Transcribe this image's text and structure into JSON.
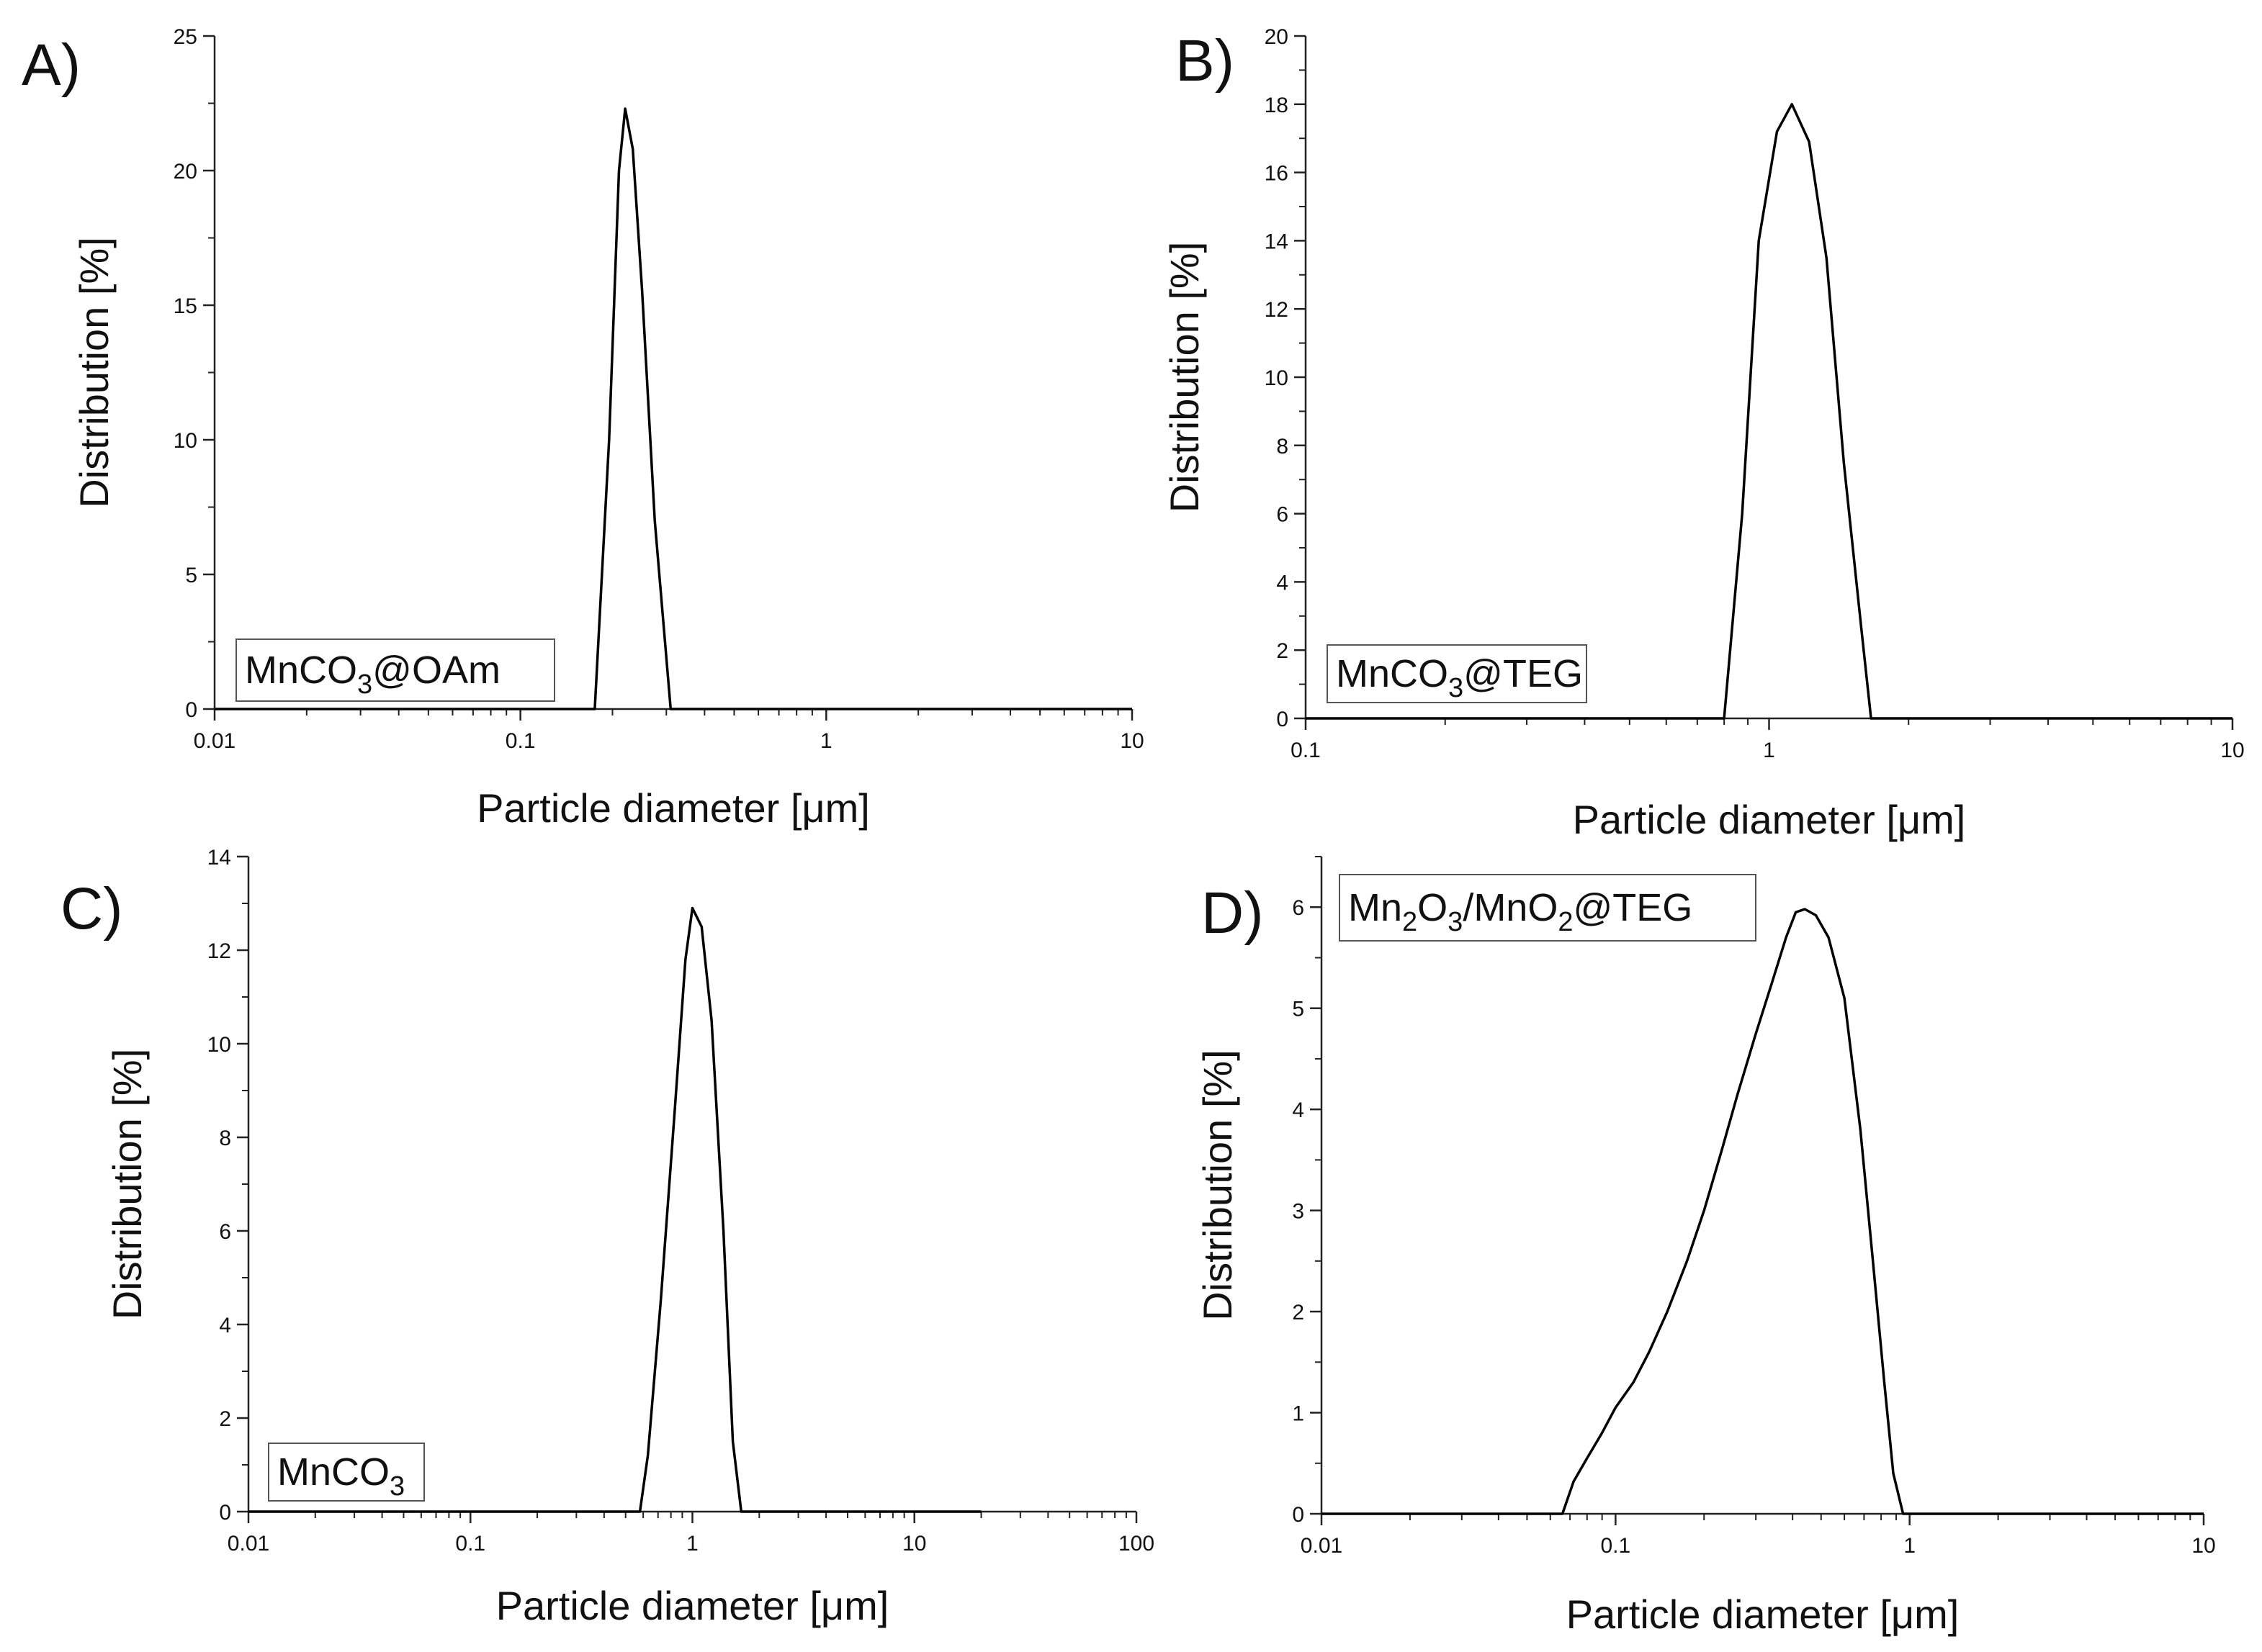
{
  "chart_data": [
    {
      "type": "line",
      "panel_letter": "A)",
      "x_scale": "log",
      "xlim": [
        0.01,
        10
      ],
      "ylim": [
        0,
        25
      ],
      "xticks": [
        0.01,
        0.1,
        1,
        10
      ],
      "xtick_labels": [
        "0.01",
        "0.1",
        "1",
        "10"
      ],
      "yticks": [
        0,
        5,
        10,
        15,
        20,
        25
      ],
      "ytick_labels": [
        "0",
        "5",
        "10",
        "15",
        "20",
        "25"
      ],
      "xlabel": "Particle diameter [μm]",
      "ylabel": "Distribution [%]",
      "legend_location": "bottom-left",
      "grid": false,
      "series": [
        {
          "name": "MnCO3@OAm",
          "name_parts": [
            {
              "t": "MnCO"
            },
            {
              "t": "3",
              "sub": true
            },
            {
              "t": "@OAm"
            }
          ],
          "color": "#000000",
          "x": [
            0.01,
            0.175,
            0.195,
            0.21,
            0.22,
            0.233,
            0.25,
            0.275,
            0.31,
            10
          ],
          "y": [
            0,
            0,
            10,
            20,
            22.3,
            20.8,
            15.5,
            7,
            0,
            0
          ]
        }
      ]
    },
    {
      "type": "line",
      "panel_letter": "B)",
      "x_scale": "log",
      "xlim": [
        0.1,
        10
      ],
      "ylim": [
        0,
        20
      ],
      "xticks": [
        0.1,
        1,
        10
      ],
      "xtick_labels": [
        "0.1",
        "1",
        "10"
      ],
      "yticks": [
        0,
        2,
        4,
        6,
        8,
        10,
        12,
        14,
        16,
        18,
        20
      ],
      "ytick_labels": [
        "0",
        "2",
        "4",
        "6",
        "8",
        "10",
        "12",
        "14",
        "16",
        "18",
        "20"
      ],
      "xlabel": "Particle diameter [μm]",
      "ylabel": "Distribution [%]",
      "legend_location": "bottom-left",
      "grid": false,
      "series": [
        {
          "name": "MnCO3@TEG",
          "name_parts": [
            {
              "t": "MnCO"
            },
            {
              "t": "3",
              "sub": true
            },
            {
              "t": "@TEG"
            }
          ],
          "color": "#000000",
          "x": [
            0.1,
            0.8,
            0.875,
            0.95,
            1.04,
            1.12,
            1.22,
            1.33,
            1.45,
            1.58,
            1.66,
            10
          ],
          "y": [
            0,
            0,
            6,
            14,
            17.2,
            18,
            16.9,
            13.5,
            7.5,
            2.7,
            0,
            0
          ]
        }
      ]
    },
    {
      "type": "line",
      "panel_letter": "C)",
      "x_scale": "log",
      "xlim": [
        0.01,
        100
      ],
      "ylim": [
        0,
        14
      ],
      "xticks": [
        0.01,
        0.1,
        1,
        10,
        100
      ],
      "xtick_labels": [
        "0.01",
        "0.1",
        "1",
        "10",
        "100"
      ],
      "yticks": [
        0,
        2,
        4,
        6,
        8,
        10,
        12,
        14
      ],
      "ytick_labels": [
        "0",
        "2",
        "4",
        "6",
        "8",
        "10",
        "12",
        "14"
      ],
      "xlabel": "Particle diameter [μm]",
      "ylabel": "Distribution [%]",
      "legend_location": "bottom-left",
      "grid": false,
      "series": [
        {
          "name": "MnCO3",
          "name_parts": [
            {
              "t": "MnCO"
            },
            {
              "t": "3",
              "sub": true
            }
          ],
          "color": "#000000",
          "x": [
            0.01,
            0.58,
            0.63,
            0.72,
            0.83,
            0.93,
            1.0,
            1.1,
            1.22,
            1.38,
            1.52,
            1.66,
            20
          ],
          "y": [
            0,
            0,
            1.2,
            4.5,
            8.5,
            11.8,
            12.9,
            12.5,
            10.5,
            6,
            1.5,
            0,
            0
          ]
        }
      ]
    },
    {
      "type": "line",
      "panel_letter": "D)",
      "x_scale": "log",
      "xlim": [
        0.01,
        10
      ],
      "ylim": [
        0,
        6.5
      ],
      "xticks": [
        0.01,
        0.1,
        1,
        10
      ],
      "xtick_labels": [
        "0.01",
        "0.1",
        "1",
        "10"
      ],
      "yticks": [
        0,
        1,
        2,
        3,
        4,
        5,
        6
      ],
      "ytick_labels": [
        "0",
        "1",
        "2",
        "3",
        "4",
        "5",
        "6"
      ],
      "xlabel": "Particle diameter [μm]",
      "ylabel": "Distribution [%]",
      "legend_location": "top-left",
      "grid": false,
      "series": [
        {
          "name": "Mn2O3/MnO2@TEG",
          "name_parts": [
            {
              "t": "Mn"
            },
            {
              "t": "2",
              "sub": true
            },
            {
              "t": "O"
            },
            {
              "t": "3",
              "sub": true
            },
            {
              "t": "/MnO"
            },
            {
              "t": "2",
              "sub": true
            },
            {
              "t": "@TEG"
            }
          ],
          "color": "#000000",
          "x": [
            0.01,
            0.066,
            0.072,
            0.08,
            0.09,
            0.1,
            0.115,
            0.13,
            0.15,
            0.175,
            0.2,
            0.23,
            0.26,
            0.3,
            0.34,
            0.38,
            0.41,
            0.44,
            0.48,
            0.53,
            0.6,
            0.68,
            0.75,
            0.82,
            0.88,
            0.95,
            10
          ],
          "y": [
            0,
            0,
            0.32,
            0.55,
            0.8,
            1.05,
            1.3,
            1.6,
            2.0,
            2.5,
            3.0,
            3.6,
            4.15,
            4.75,
            5.25,
            5.7,
            5.95,
            5.98,
            5.92,
            5.7,
            5.1,
            3.8,
            2.5,
            1.3,
            0.4,
            0,
            0
          ]
        }
      ]
    }
  ]
}
